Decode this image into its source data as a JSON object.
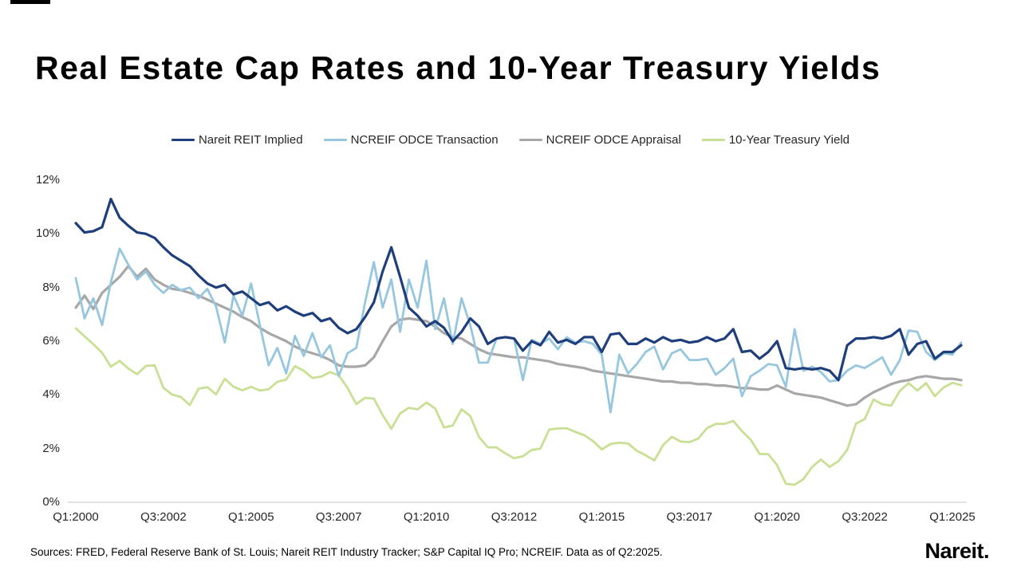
{
  "title": "Real Estate Cap Rates and 10-Year Treasury Yields",
  "footer": {
    "sources": "Sources: FRED, Federal Reserve Bank of St. Louis; Nareit REIT Industry Tracker; S&P Capital IQ Pro; NCREIF. Data as of Q2:2025.",
    "logo_text": "Nareit",
    "logo_dot": "."
  },
  "chart_data": {
    "type": "line",
    "title": "Real Estate Cap Rates and 10-Year Treasury Yields",
    "frequency": "quarterly",
    "x_start": "Q1:2000",
    "x_end": "Q2:2025",
    "n_points": 102,
    "grid": false,
    "legend_position": "top",
    "ylim": [
      0,
      12
    ],
    "y_ticks": [
      {
        "label": "12%",
        "value": 12
      },
      {
        "label": "10%",
        "value": 10
      },
      {
        "label": "8%",
        "value": 8
      },
      {
        "label": "6%",
        "value": 6
      },
      {
        "label": "4%",
        "value": 4
      },
      {
        "label": "2%",
        "value": 2
      },
      {
        "label": "0%",
        "value": 0
      }
    ],
    "x_ticks": [
      {
        "label": "Q1:2000",
        "q": 0
      },
      {
        "label": "Q3:2002",
        "q": 10
      },
      {
        "label": "Q1:2005",
        "q": 20
      },
      {
        "label": "Q3:2007",
        "q": 30
      },
      {
        "label": "Q1:2010",
        "q": 40
      },
      {
        "label": "Q3:2012",
        "q": 50
      },
      {
        "label": "Q1:2015",
        "q": 60
      },
      {
        "label": "Q3:2017",
        "q": 70
      },
      {
        "label": "Q1:2020",
        "q": 80
      },
      {
        "label": "Q3:2022",
        "q": 90
      },
      {
        "label": "Q1:2025",
        "q": 100
      }
    ],
    "series": [
      {
        "name": "Nareit REIT Implied",
        "color": "#1F3E7C",
        "stroke_width": 3.2,
        "values": [
          10.4,
          10.05,
          10.1,
          10.25,
          11.3,
          10.6,
          10.3,
          10.05,
          10.0,
          9.85,
          9.5,
          9.2,
          9.0,
          8.8,
          8.45,
          8.15,
          8.0,
          8.1,
          7.75,
          7.85,
          7.6,
          7.35,
          7.45,
          7.15,
          7.3,
          7.1,
          6.95,
          7.05,
          6.75,
          6.85,
          6.5,
          6.3,
          6.45,
          6.9,
          7.45,
          8.6,
          9.5,
          8.4,
          7.25,
          6.95,
          6.55,
          6.75,
          6.5,
          6.0,
          6.35,
          6.85,
          6.55,
          5.9,
          6.1,
          6.15,
          6.1,
          5.65,
          6.0,
          5.85,
          6.35,
          5.95,
          6.05,
          5.9,
          6.15,
          6.15,
          5.6,
          6.25,
          6.3,
          5.9,
          5.9,
          6.1,
          5.95,
          6.15,
          6.0,
          6.05,
          5.95,
          6.0,
          6.15,
          6.0,
          6.1,
          6.45,
          5.6,
          5.65,
          5.35,
          5.6,
          6.0,
          5.0,
          4.95,
          5.0,
          4.95,
          5.0,
          4.9,
          4.55,
          5.85,
          6.1,
          6.1,
          6.15,
          6.1,
          6.2,
          6.45,
          5.5,
          5.9,
          6.0,
          5.35,
          5.6,
          5.6,
          5.85
        ]
      },
      {
        "name": "NCREIF ODCE Transaction",
        "color": "#96C7DF",
        "stroke_width": 2.8,
        "values": [
          8.35,
          6.85,
          7.6,
          6.6,
          8.2,
          9.45,
          8.85,
          8.3,
          8.6,
          8.1,
          7.8,
          8.1,
          7.9,
          8.0,
          7.6,
          7.95,
          7.3,
          5.95,
          7.7,
          6.95,
          8.15,
          6.6,
          5.1,
          5.75,
          4.8,
          6.2,
          5.45,
          6.3,
          5.4,
          5.85,
          4.7,
          5.55,
          5.75,
          7.45,
          8.95,
          7.25,
          8.3,
          6.35,
          8.3,
          7.25,
          9.0,
          6.45,
          7.6,
          5.9,
          7.6,
          6.6,
          5.2,
          5.2,
          6.1,
          6.15,
          6.1,
          4.55,
          6.05,
          5.9,
          6.1,
          5.7,
          6.15,
          5.95,
          6.0,
          5.9,
          5.5,
          3.35,
          5.5,
          4.8,
          5.15,
          5.6,
          5.8,
          4.95,
          5.55,
          5.7,
          5.3,
          5.3,
          5.35,
          4.75,
          5.0,
          5.35,
          3.95,
          4.7,
          4.9,
          5.15,
          5.1,
          4.3,
          6.45,
          4.9,
          5.05,
          4.85,
          4.5,
          4.55,
          4.9,
          5.1,
          5.0,
          5.2,
          5.4,
          4.75,
          5.3,
          6.4,
          6.35,
          5.6,
          5.3,
          5.55,
          5.5,
          5.95
        ]
      },
      {
        "name": "NCREIF ODCE Appraisal",
        "color": "#A7A7A7",
        "stroke_width": 3.2,
        "values": [
          7.25,
          7.7,
          7.2,
          7.8,
          8.1,
          8.4,
          8.8,
          8.4,
          8.7,
          8.3,
          8.1,
          7.95,
          7.9,
          7.8,
          7.7,
          7.55,
          7.4,
          7.25,
          7.1,
          6.9,
          6.75,
          6.5,
          6.3,
          6.15,
          6.0,
          5.8,
          5.65,
          5.55,
          5.45,
          5.3,
          5.1,
          5.05,
          5.05,
          5.1,
          5.4,
          6.0,
          6.55,
          6.8,
          6.85,
          6.8,
          6.75,
          6.55,
          6.3,
          6.15,
          6.1,
          5.9,
          5.7,
          5.55,
          5.5,
          5.45,
          5.4,
          5.4,
          5.35,
          5.3,
          5.25,
          5.15,
          5.1,
          5.05,
          5.0,
          4.9,
          4.85,
          4.8,
          4.75,
          4.7,
          4.65,
          4.6,
          4.55,
          4.5,
          4.5,
          4.45,
          4.45,
          4.4,
          4.4,
          4.35,
          4.35,
          4.3,
          4.25,
          4.25,
          4.2,
          4.2,
          4.35,
          4.2,
          4.05,
          4.0,
          3.95,
          3.9,
          3.8,
          3.7,
          3.6,
          3.65,
          3.9,
          4.1,
          4.25,
          4.4,
          4.5,
          4.55,
          4.65,
          4.7,
          4.65,
          4.6,
          4.6,
          4.55
        ]
      },
      {
        "name": "10-Year Treasury Yield",
        "color": "#C8DF94",
        "stroke_width": 2.8,
        "values": [
          6.48,
          6.18,
          5.89,
          5.57,
          5.05,
          5.27,
          4.98,
          4.77,
          5.08,
          5.1,
          4.26,
          4.01,
          3.92,
          3.62,
          4.23,
          4.29,
          4.02,
          4.6,
          4.3,
          4.17,
          4.3,
          4.16,
          4.21,
          4.49,
          4.57,
          5.07,
          4.9,
          4.63,
          4.68,
          4.85,
          4.73,
          4.26,
          3.66,
          3.89,
          3.86,
          3.25,
          2.74,
          3.31,
          3.52,
          3.46,
          3.72,
          3.49,
          2.79,
          2.86,
          3.46,
          3.21,
          2.43,
          2.05,
          2.04,
          1.82,
          1.64,
          1.71,
          1.95,
          2.0,
          2.71,
          2.75,
          2.76,
          2.62,
          2.5,
          2.28,
          1.97,
          2.17,
          2.22,
          2.19,
          1.92,
          1.75,
          1.56,
          2.13,
          2.44,
          2.26,
          2.24,
          2.37,
          2.76,
          2.92,
          2.92,
          3.03,
          2.65,
          2.33,
          1.8,
          1.79,
          1.38,
          0.69,
          0.65,
          0.86,
          1.32,
          1.59,
          1.32,
          1.53,
          1.95,
          2.93,
          3.1,
          3.83,
          3.65,
          3.6,
          4.15,
          4.44,
          4.16,
          4.44,
          3.95,
          4.28,
          4.45,
          4.36
        ]
      }
    ]
  },
  "layout_note": ""
}
